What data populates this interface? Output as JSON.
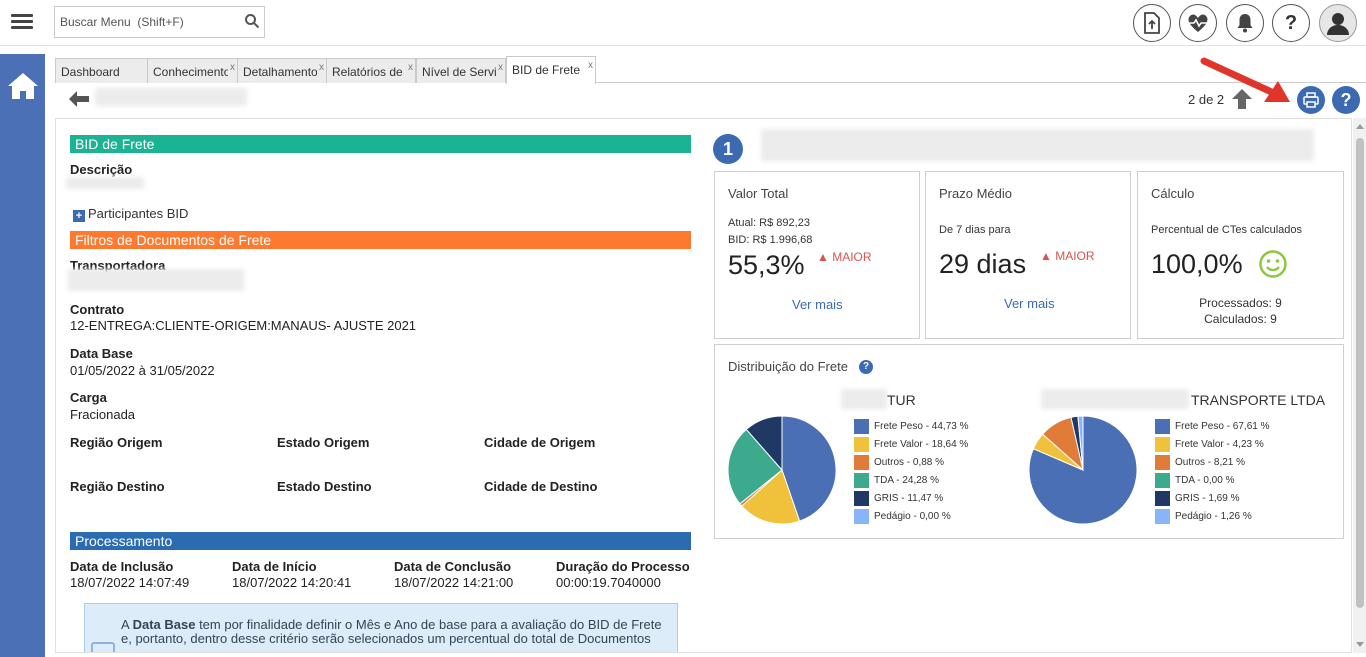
{
  "search": {
    "placeholder": "Buscar Menu  (Shift+F)"
  },
  "tabs": [
    {
      "label": "Dashboard",
      "closable": false
    },
    {
      "label": "Conhecimento",
      "closable": true
    },
    {
      "label": "Detalhamento",
      "closable": true
    },
    {
      "label": "Relatórios de",
      "closable": true
    },
    {
      "label": "Nível de Serviço",
      "closable": true
    },
    {
      "label": "BID de Frete",
      "closable": true,
      "active": true
    }
  ],
  "tab_close": "x",
  "pager": "2 de 2",
  "help": "?",
  "form": {
    "section_bid": "BID de Frete",
    "descricao_label": "Descrição",
    "participants": "Participantes BID",
    "section_filtros": "Filtros de Documentos de Frete",
    "transportadora_label": "Transportadora",
    "contrato_label": "Contrato",
    "contrato_value": "12-ENTREGA:CLIENTE-ORIGEM:MANAUS- AJUSTE 2021",
    "database_label": "Data Base",
    "database_value": "01/05/2022 à 31/05/2022",
    "carga_label": "Carga",
    "carga_value": "Fracionada",
    "regiao_origem": "Região Origem",
    "estado_origem": "Estado Origem",
    "cidade_origem": "Cidade de Origem",
    "regiao_destino": "Região Destino",
    "estado_destino": "Estado Destino",
    "cidade_destino": "Cidade de Destino",
    "section_proc": "Processamento",
    "inclusao_label": "Data de Inclusão",
    "inclusao_value": "18/07/2022 14:07:49",
    "inicio_label": "Data de Início",
    "inicio_value": "18/07/2022 14:20:41",
    "conclusao_label": "Data de Conclusão",
    "conclusao_value": "18/07/2022 14:21:00",
    "duracao_label": "Duração do Processo",
    "duracao_value": "00:00:19.7040000",
    "info_pre": "A ",
    "info_bold": "Data Base",
    "info_rest": " tem por finalidade definir o Mês e Ano de base para a avaliação do BID de Frete e, portanto, dentro desse critério serão selecionados um percentual do total de Documentos"
  },
  "section_colors": {
    "bid": "#1ab394",
    "filtros": "#ff7a2f",
    "proc": "#2b6cb0"
  },
  "dashboard": {
    "badge": "1",
    "valor_total": {
      "title": "Valor Total",
      "atual": "Atual: R$ 892,23",
      "bid": "BID: R$ 1.996,68",
      "value": "55,3%",
      "trend": "MAIOR",
      "link": "Ver mais"
    },
    "prazo_medio": {
      "title": "Prazo Médio",
      "subtitle": "De 7 dias para",
      "value": "29 dias",
      "trend": "MAIOR",
      "link": "Ver mais"
    },
    "calculo": {
      "title": "Cálculo",
      "subtitle": "Percentual de CTes calculados",
      "value": "100,0%",
      "processados": "Processados: 9",
      "calculados": "Calculados: 9"
    },
    "distribuicao": {
      "title": "Distribuição do Frete",
      "help": "?",
      "charts": [
        {
          "title_visible": "TUR",
          "slices": [
            {
              "label": "Frete Peso - 44,73 %",
              "value": 44.73,
              "color": "#4a6fb5"
            },
            {
              "label": "Frete Valor - 18,64 %",
              "value": 18.64,
              "color": "#f0c23b"
            },
            {
              "label": "Outros - 0,88 %",
              "value": 0.88,
              "color": "#e07b39"
            },
            {
              "label": "TDA - 24,28 %",
              "value": 24.28,
              "color": "#3daa8e"
            },
            {
              "label": "GRIS - 11,47 %",
              "value": 11.47,
              "color": "#1f3864"
            },
            {
              "label": "Pedágio - 0,00 %",
              "value": 0.0,
              "color": "#8ab4f8"
            }
          ]
        },
        {
          "title_visible": "TRANSPORTE LTDA",
          "slices": [
            {
              "label": "Frete Peso - 67,61 %",
              "value": 67.61,
              "color": "#4a6fb5"
            },
            {
              "label": "Frete Valor - 4,23 %",
              "value": 4.23,
              "color": "#f0c23b"
            },
            {
              "label": "Outros - 8,21 %",
              "value": 8.21,
              "color": "#e07b39"
            },
            {
              "label": "TDA - 0,00 %",
              "value": 0.0,
              "color": "#3daa8e"
            },
            {
              "label": "GRIS - 1,69 %",
              "value": 1.69,
              "color": "#1f3864"
            },
            {
              "label": "Pedágio - 1,26 %",
              "value": 1.26,
              "color": "#8ab4f8"
            }
          ]
        }
      ]
    }
  }
}
